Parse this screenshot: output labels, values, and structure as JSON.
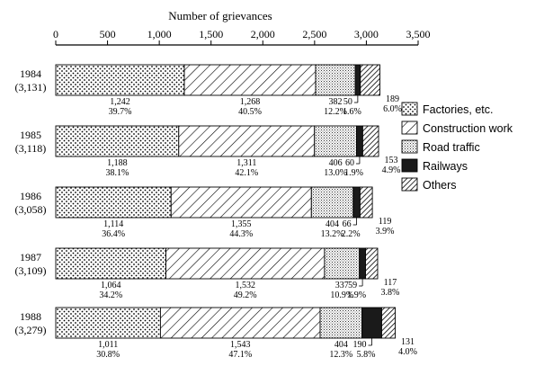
{
  "chart_data": {
    "type": "bar",
    "orientation": "horizontal",
    "stacked": true,
    "xlabel": "Number of grievances",
    "xlim": [
      0,
      3500
    ],
    "xticks": [
      "0",
      "500",
      "1,000",
      "1,500",
      "2,000",
      "2,500",
      "3,000",
      "3,500"
    ],
    "tick_values": [
      0,
      500,
      1000,
      1500,
      2000,
      2500,
      3000,
      3500
    ],
    "legend_position": "right",
    "categories": [
      {
        "year": "1984",
        "total": "(3,131)"
      },
      {
        "year": "1985",
        "total": "(3,118)"
      },
      {
        "year": "1986",
        "total": "(3,058)"
      },
      {
        "year": "1987",
        "total": "(3,109)"
      },
      {
        "year": "1988",
        "total": "(3,279)"
      }
    ],
    "series": [
      {
        "name": "Factories, etc.",
        "pattern": "dots",
        "values": [
          1242,
          1188,
          1114,
          1064,
          1011
        ],
        "labels": [
          "1,242",
          "1,188",
          "1,114",
          "1,064",
          "1,011"
        ],
        "percents": [
          "39.7%",
          "38.1%",
          "36.4%",
          "34.2%",
          "30.8%"
        ]
      },
      {
        "name": "Construction work",
        "pattern": "hatch",
        "values": [
          1268,
          1311,
          1355,
          1532,
          1543
        ],
        "labels": [
          "1,268",
          "1,311",
          "1,355",
          "1,532",
          "1,543"
        ],
        "percents": [
          "40.5%",
          "42.1%",
          "44.3%",
          "49.2%",
          "47.1%"
        ]
      },
      {
        "name": "Road traffic",
        "pattern": "stipple",
        "values": [
          382,
          406,
          404,
          337,
          404
        ],
        "labels": [
          "382",
          "406",
          "404",
          "337",
          "404"
        ],
        "percents": [
          "12.2%",
          "13.0%",
          "13.2%",
          "10.9%",
          "12.3%"
        ]
      },
      {
        "name": "Railways",
        "pattern": "solid",
        "values": [
          50,
          60,
          66,
          59,
          190
        ],
        "labels": [
          "50",
          "60",
          "66",
          "59",
          "190"
        ],
        "percents": [
          "1.6%",
          "1.9%",
          "2.2%",
          "1.9%",
          "5.8%"
        ]
      },
      {
        "name": "Others",
        "pattern": "dense-hatch",
        "values": [
          189,
          153,
          119,
          117,
          131
        ],
        "labels": [
          "189",
          "153",
          "119",
          "117",
          "131"
        ],
        "percents": [
          "6.0%",
          "4.9%",
          "3.9%",
          "3.8%",
          "4.0%"
        ]
      }
    ]
  }
}
